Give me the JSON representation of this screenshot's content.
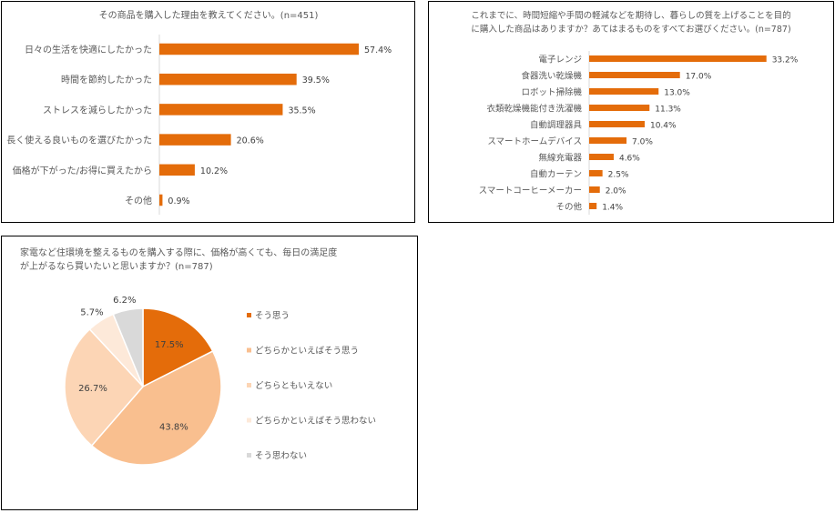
{
  "chart_data": [
    {
      "type": "bar",
      "orientation": "horizontal",
      "title": "その商品を購入した理由を教えてください。(n=451)",
      "categories": [
        "日々の生活を快適にしたかった",
        "時間を節約したかった",
        "ストレスを減らしたかった",
        "長く使える良いものを選びたかった",
        "価格が下がった/お得に買えたから",
        "その他"
      ],
      "values": [
        57.4,
        39.5,
        35.5,
        20.6,
        10.2,
        0.9
      ],
      "value_labels": [
        "57.4%",
        "39.5%",
        "35.5%",
        "20.6%",
        "10.2%",
        "0.9%"
      ],
      "color": "#E46C0A",
      "xlim": [
        0,
        65
      ],
      "grid": false
    },
    {
      "type": "bar",
      "orientation": "horizontal",
      "title_lines": [
        "これまでに、時間短縮や手間の軽減などを期待し、暮らしの質を上げることを目的",
        "に購入した商品はありますか？あてはまるものをすべてお選びください。(n=787)"
      ],
      "categories": [
        "電子レンジ",
        "食器洗い乾燥機",
        "ロボット掃除機",
        "衣類乾燥機能付き洗濯機",
        "自動調理器具",
        "スマートホームデバイス",
        "無線充電器",
        "自動カーテン",
        "スマートコーヒーメーカー",
        "その他"
      ],
      "values": [
        33.2,
        17.0,
        13.0,
        11.3,
        10.4,
        7.0,
        4.6,
        2.5,
        2.0,
        1.4
      ],
      "value_labels": [
        "33.2%",
        "17.0%",
        "13.0%",
        "11.3%",
        "10.4%",
        "7.0%",
        "4.6%",
        "2.5%",
        "2.0%",
        "1.4%"
      ],
      "color": "#E46C0A",
      "xlim": [
        0,
        37
      ],
      "grid": false
    },
    {
      "type": "pie",
      "title_lines": [
        "家電など住環境を整えるものを購入する際に、価格が高くても、毎日の満足度",
        "が上がるなら買いたいと思いますか？(n=787)"
      ],
      "categories": [
        "そう思う",
        "どちらかといえばそう思う",
        "どちらともいえない",
        "どちらかといえばそう思わない",
        "そう思わない"
      ],
      "values": [
        17.5,
        43.8,
        26.7,
        5.7,
        6.2
      ],
      "value_labels": [
        "17.5%",
        "43.8%",
        "26.7%",
        "5.7%",
        "6.2%"
      ],
      "colors": [
        "#E46C0A",
        "#F9BF8F",
        "#FCD5B5",
        "#FDE9D9",
        "#D9D9D9"
      ],
      "legend_position": "right"
    }
  ]
}
